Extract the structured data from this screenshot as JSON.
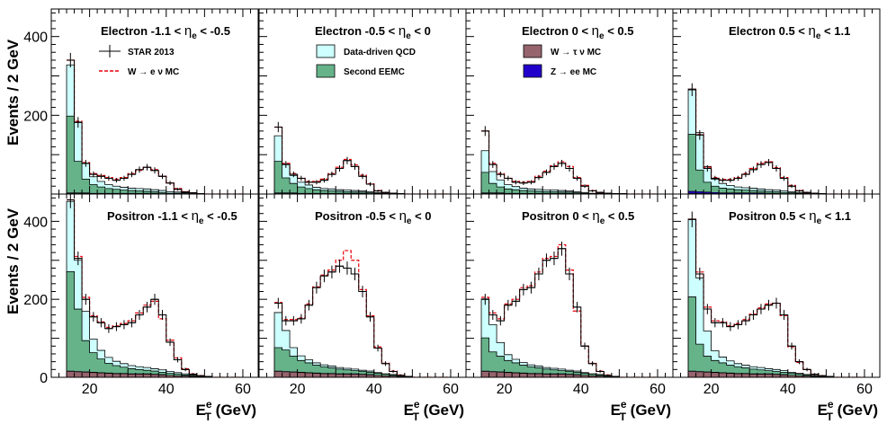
{
  "figure": {
    "ylabel": "Events / 2 GeV",
    "xlabel_base": "E",
    "xlabel_sup": "e",
    "xlabel_sub": "T",
    "xlabel_unit": "(GeV)"
  },
  "legend": {
    "entries": [
      {
        "label": "STAR 2013",
        "style": "data"
      },
      {
        "label": "W → e ν MC",
        "style": "dashed",
        "color": "#e8000b"
      },
      {
        "label": "Data-driven QCD",
        "style": "fill",
        "color": "#ccfffe"
      },
      {
        "label": "Second EEMC",
        "style": "fill",
        "color": "#66b38a"
      },
      {
        "label": "W → τ ν MC",
        "style": "fill",
        "color": "#96646d"
      },
      {
        "label": "Z → ee MC",
        "style": "fill",
        "color": "#2200cc"
      }
    ]
  },
  "colors": {
    "data": "#000000",
    "w_e_nu": "#e8000b",
    "qcd": "#ccfffe",
    "eemc": "#66b38a",
    "tau": "#96646d",
    "z_ee": "#2200cc"
  },
  "chart_data": {
    "type": "bar",
    "histtype": "stacked-step",
    "bin_edges": [
      14,
      16,
      18,
      20,
      22,
      24,
      26,
      28,
      30,
      32,
      34,
      36,
      38,
      40,
      42,
      44,
      46,
      48,
      50,
      52,
      54,
      56,
      58,
      60
    ],
    "xlim": [
      10,
      64
    ],
    "xticks": [
      20,
      40,
      60
    ],
    "panels": [
      {
        "title_prefix": "Electron -1.1 <",
        "title_eta": "η",
        "title_sub": "e",
        "title_suffix": "< -0.5",
        "ylim": [
          0,
          470
        ],
        "yticks": [
          200,
          400
        ],
        "data": [
          340,
          182,
          78,
          50,
          45,
          40,
          35,
          40,
          50,
          62,
          68,
          60,
          45,
          28,
          12,
          5,
          3,
          1,
          0,
          0,
          0,
          0,
          0
        ],
        "signal": [
          340,
          185,
          80,
          52,
          47,
          42,
          38,
          42,
          52,
          60,
          68,
          62,
          45,
          28,
          14,
          6,
          3,
          1,
          0,
          0,
          0,
          0,
          0
        ],
        "qcd": [
          130,
          100,
          40,
          20,
          14,
          10,
          8,
          7,
          6,
          6,
          6,
          5,
          5,
          4,
          3,
          2,
          2,
          1,
          0,
          0,
          0,
          0,
          0
        ],
        "eemc": [
          195,
          80,
          35,
          22,
          16,
          12,
          10,
          8,
          7,
          6,
          5,
          4,
          3,
          2,
          2,
          1,
          1,
          0,
          0,
          0,
          0,
          0,
          0
        ],
        "tau": [
          2,
          2,
          2,
          1,
          1,
          1,
          1,
          1,
          1,
          1,
          1,
          1,
          0,
          0,
          0,
          0,
          0,
          0,
          0,
          0,
          0,
          0,
          0
        ],
        "zee": [
          1,
          1,
          1,
          1,
          1,
          1,
          1,
          1,
          1,
          1,
          1,
          1,
          1,
          0,
          0,
          0,
          0,
          0,
          0,
          0,
          0,
          0,
          0
        ]
      },
      {
        "title_prefix": "Electron -0.5 <",
        "title_eta": "η",
        "title_sub": "e",
        "title_suffix": "< 0",
        "ylim": [
          0,
          470
        ],
        "yticks": [
          200,
          400
        ],
        "data": [
          170,
          75,
          50,
          40,
          30,
          30,
          35,
          50,
          65,
          85,
          70,
          45,
          25,
          8,
          4,
          2,
          1,
          0,
          0,
          0,
          0,
          0,
          0
        ],
        "signal": [
          170,
          78,
          52,
          40,
          32,
          32,
          38,
          52,
          68,
          88,
          74,
          48,
          26,
          9,
          4,
          2,
          1,
          0,
          0,
          0,
          0,
          0,
          0
        ],
        "qcd": [
          65,
          35,
          20,
          12,
          9,
          6,
          5,
          5,
          4,
          4,
          4,
          3,
          3,
          2,
          1,
          1,
          0,
          0,
          0,
          0,
          0,
          0,
          0
        ],
        "eemc": [
          80,
          38,
          24,
          16,
          12,
          9,
          7,
          6,
          5,
          4,
          3,
          3,
          2,
          2,
          1,
          1,
          0,
          0,
          0,
          0,
          0,
          0,
          0
        ],
        "tau": [
          2,
          2,
          2,
          1,
          1,
          1,
          1,
          1,
          1,
          1,
          1,
          1,
          0,
          0,
          0,
          0,
          0,
          0,
          0,
          0,
          0,
          0,
          0
        ],
        "zee": [
          1,
          1,
          1,
          1,
          1,
          1,
          1,
          1,
          1,
          1,
          1,
          1,
          1,
          0,
          0,
          0,
          0,
          0,
          0,
          0,
          0,
          0,
          0
        ]
      },
      {
        "title_prefix": "Electron 0 <",
        "title_eta": "η",
        "title_sub": "e",
        "title_suffix": "< 0.5",
        "ylim": [
          0,
          470
        ],
        "yticks": [
          200,
          400
        ],
        "data": [
          160,
          75,
          50,
          40,
          30,
          28,
          30,
          42,
          55,
          70,
          78,
          65,
          40,
          20,
          8,
          4,
          2,
          1,
          1,
          0,
          0,
          0,
          0
        ],
        "signal": [
          160,
          78,
          52,
          40,
          32,
          30,
          32,
          45,
          58,
          72,
          82,
          70,
          42,
          22,
          9,
          4,
          2,
          1,
          1,
          0,
          0,
          0,
          0
        ],
        "qcd": [
          55,
          30,
          18,
          11,
          8,
          6,
          5,
          5,
          4,
          4,
          4,
          3,
          3,
          2,
          1,
          1,
          0,
          0,
          0,
          0,
          0,
          0,
          0
        ],
        "eemc": [
          52,
          24,
          15,
          11,
          9,
          7,
          6,
          5,
          4,
          4,
          3,
          3,
          2,
          2,
          1,
          1,
          0,
          0,
          0,
          0,
          0,
          0,
          0
        ],
        "tau": [
          2,
          2,
          2,
          1,
          1,
          1,
          1,
          1,
          1,
          1,
          1,
          1,
          0,
          0,
          0,
          0,
          0,
          0,
          0,
          0,
          0,
          0,
          0
        ],
        "zee": [
          1,
          1,
          1,
          1,
          1,
          1,
          1,
          1,
          1,
          1,
          1,
          1,
          1,
          0,
          0,
          0,
          0,
          0,
          0,
          0,
          0,
          0,
          0
        ]
      },
      {
        "title_prefix": "Electron 0.5 <",
        "title_eta": "η",
        "title_sub": "e",
        "title_suffix": "< 1.1",
        "ylim": [
          0,
          470
        ],
        "yticks": [
          200,
          400
        ],
        "data": [
          265,
          150,
          65,
          40,
          35,
          35,
          40,
          50,
          62,
          75,
          80,
          65,
          40,
          20,
          8,
          4,
          2,
          1,
          0,
          0,
          0,
          0,
          0
        ],
        "signal": [
          265,
          152,
          68,
          42,
          37,
          37,
          42,
          52,
          65,
          78,
          82,
          67,
          42,
          22,
          9,
          4,
          2,
          1,
          0,
          0,
          0,
          0,
          0
        ],
        "qcd": [
          115,
          95,
          40,
          18,
          12,
          9,
          7,
          6,
          6,
          5,
          5,
          4,
          4,
          3,
          2,
          1,
          1,
          0,
          0,
          0,
          0,
          0,
          0
        ],
        "eemc": [
          145,
          55,
          25,
          16,
          12,
          10,
          8,
          7,
          6,
          5,
          4,
          4,
          3,
          2,
          2,
          1,
          1,
          0,
          0,
          0,
          0,
          0,
          0
        ],
        "tau": [
          2,
          2,
          2,
          1,
          1,
          1,
          1,
          1,
          1,
          1,
          1,
          1,
          0,
          0,
          0,
          0,
          0,
          0,
          0,
          0,
          0,
          0,
          0
        ],
        "zee": [
          5,
          4,
          3,
          3,
          2,
          2,
          2,
          2,
          2,
          2,
          1,
          1,
          1,
          1,
          0,
          0,
          0,
          0,
          0,
          0,
          0,
          0,
          0
        ]
      },
      {
        "title_prefix": "Positron -1.1 <",
        "title_eta": "η",
        "title_sub": "e",
        "title_suffix": "< -0.5",
        "ylim": [
          0,
          470
        ],
        "yticks": [
          0,
          200,
          400
        ],
        "data": [
          455,
          305,
          200,
          155,
          140,
          125,
          130,
          135,
          140,
          160,
          180,
          200,
          160,
          90,
          45,
          20,
          8,
          4,
          2,
          0,
          0,
          0,
          0
        ],
        "signal": [
          455,
          310,
          205,
          158,
          142,
          128,
          132,
          138,
          145,
          165,
          185,
          195,
          150,
          95,
          50,
          22,
          9,
          4,
          2,
          0,
          0,
          0,
          0
        ],
        "qcd": [
          180,
          125,
          75,
          35,
          22,
          15,
          11,
          9,
          8,
          7,
          7,
          6,
          6,
          5,
          4,
          3,
          2,
          1,
          0,
          0,
          0,
          0,
          0
        ],
        "eemc": [
          255,
          160,
          80,
          50,
          35,
          25,
          20,
          16,
          13,
          11,
          9,
          8,
          6,
          5,
          4,
          3,
          2,
          1,
          0,
          0,
          0,
          0,
          0
        ],
        "tau": [
          15,
          14,
          13,
          12,
          11,
          10,
          9,
          9,
          8,
          8,
          8,
          7,
          6,
          5,
          4,
          3,
          2,
          1,
          0,
          0,
          0,
          0,
          0
        ],
        "zee": [
          1,
          1,
          1,
          1,
          1,
          1,
          1,
          1,
          1,
          1,
          1,
          1,
          1,
          0,
          0,
          0,
          0,
          0,
          0,
          0,
          0,
          0,
          0
        ]
      },
      {
        "title_prefix": "Positron -0.5 <",
        "title_eta": "η",
        "title_sub": "e",
        "title_suffix": "< 0",
        "ylim": [
          0,
          470
        ],
        "yticks": [
          200,
          400
        ],
        "data": [
          190,
          145,
          145,
          150,
          185,
          230,
          260,
          270,
          285,
          280,
          265,
          220,
          155,
          75,
          35,
          15,
          5,
          2,
          0,
          0,
          0,
          0,
          0
        ],
        "signal": [
          192,
          148,
          148,
          152,
          188,
          232,
          262,
          275,
          300,
          325,
          300,
          225,
          158,
          78,
          36,
          16,
          6,
          2,
          0,
          0,
          0,
          0,
          0
        ],
        "qcd": [
          90,
          50,
          22,
          12,
          8,
          6,
          5,
          5,
          4,
          4,
          4,
          3,
          3,
          2,
          1,
          1,
          0,
          0,
          0,
          0,
          0,
          0,
          0
        ],
        "eemc": [
          60,
          55,
          40,
          30,
          25,
          20,
          17,
          14,
          12,
          10,
          8,
          7,
          6,
          5,
          4,
          3,
          2,
          1,
          0,
          0,
          0,
          0,
          0
        ],
        "tau": [
          15,
          14,
          13,
          12,
          11,
          10,
          9,
          9,
          8,
          8,
          8,
          7,
          6,
          5,
          4,
          3,
          2,
          1,
          0,
          0,
          0,
          0,
          0
        ],
        "zee": [
          1,
          1,
          1,
          1,
          1,
          1,
          1,
          1,
          1,
          1,
          1,
          1,
          1,
          0,
          0,
          0,
          0,
          0,
          0,
          0,
          0,
          0,
          0
        ]
      },
      {
        "title_prefix": "Positron 0 <",
        "title_eta": "η",
        "title_sub": "e",
        "title_suffix": "< 0.5",
        "ylim": [
          0,
          470
        ],
        "yticks": [
          200,
          400
        ],
        "data": [
          200,
          160,
          145,
          185,
          195,
          225,
          230,
          265,
          300,
          305,
          330,
          265,
          180,
          80,
          35,
          15,
          5,
          2,
          0,
          0,
          0,
          0,
          0
        ],
        "signal": [
          205,
          165,
          150,
          188,
          200,
          230,
          235,
          270,
          305,
          310,
          340,
          275,
          170,
          80,
          36,
          16,
          6,
          2,
          0,
          0,
          0,
          0,
          0
        ],
        "qcd": [
          100,
          70,
          35,
          15,
          9,
          7,
          5,
          5,
          4,
          4,
          4,
          3,
          3,
          2,
          1,
          1,
          0,
          0,
          0,
          0,
          0,
          0,
          0
        ],
        "eemc": [
          85,
          50,
          40,
          30,
          25,
          20,
          17,
          14,
          12,
          10,
          8,
          7,
          6,
          5,
          4,
          3,
          2,
          1,
          0,
          0,
          0,
          0,
          0
        ],
        "tau": [
          15,
          14,
          13,
          12,
          11,
          10,
          9,
          9,
          8,
          8,
          8,
          7,
          6,
          5,
          4,
          3,
          2,
          1,
          0,
          0,
          0,
          0,
          0
        ],
        "zee": [
          1,
          1,
          1,
          1,
          1,
          1,
          1,
          1,
          1,
          1,
          1,
          1,
          1,
          0,
          0,
          0,
          0,
          0,
          0,
          0,
          0,
          0,
          0
        ]
      },
      {
        "title_prefix": "Positron 0.5 <",
        "title_eta": "η",
        "title_sub": "e",
        "title_suffix": "< 1.1",
        "ylim": [
          0,
          470
        ],
        "yticks": [
          200,
          400
        ],
        "data": [
          405,
          265,
          175,
          140,
          140,
          130,
          135,
          145,
          160,
          175,
          185,
          190,
          160,
          80,
          40,
          20,
          8,
          4,
          2,
          0,
          0,
          0,
          0
        ],
        "signal": [
          405,
          270,
          180,
          145,
          142,
          132,
          138,
          148,
          162,
          178,
          188,
          190,
          158,
          78,
          38,
          20,
          8,
          4,
          2,
          0,
          0,
          0,
          0
        ],
        "qcd": [
          200,
          170,
          65,
          25,
          15,
          11,
          8,
          7,
          6,
          6,
          5,
          5,
          4,
          3,
          2,
          1,
          1,
          0,
          0,
          0,
          0,
          0,
          0
        ],
        "eemc": [
          190,
          70,
          40,
          30,
          25,
          20,
          17,
          14,
          12,
          10,
          8,
          7,
          6,
          5,
          4,
          3,
          2,
          1,
          0,
          0,
          0,
          0,
          0
        ],
        "tau": [
          15,
          14,
          13,
          12,
          11,
          10,
          9,
          9,
          8,
          8,
          8,
          7,
          6,
          5,
          4,
          3,
          2,
          1,
          0,
          0,
          0,
          0,
          0
        ],
        "zee": [
          1,
          1,
          1,
          1,
          1,
          1,
          1,
          1,
          1,
          1,
          1,
          1,
          1,
          0,
          0,
          0,
          0,
          0,
          0,
          0,
          0,
          0,
          0
        ]
      }
    ]
  }
}
